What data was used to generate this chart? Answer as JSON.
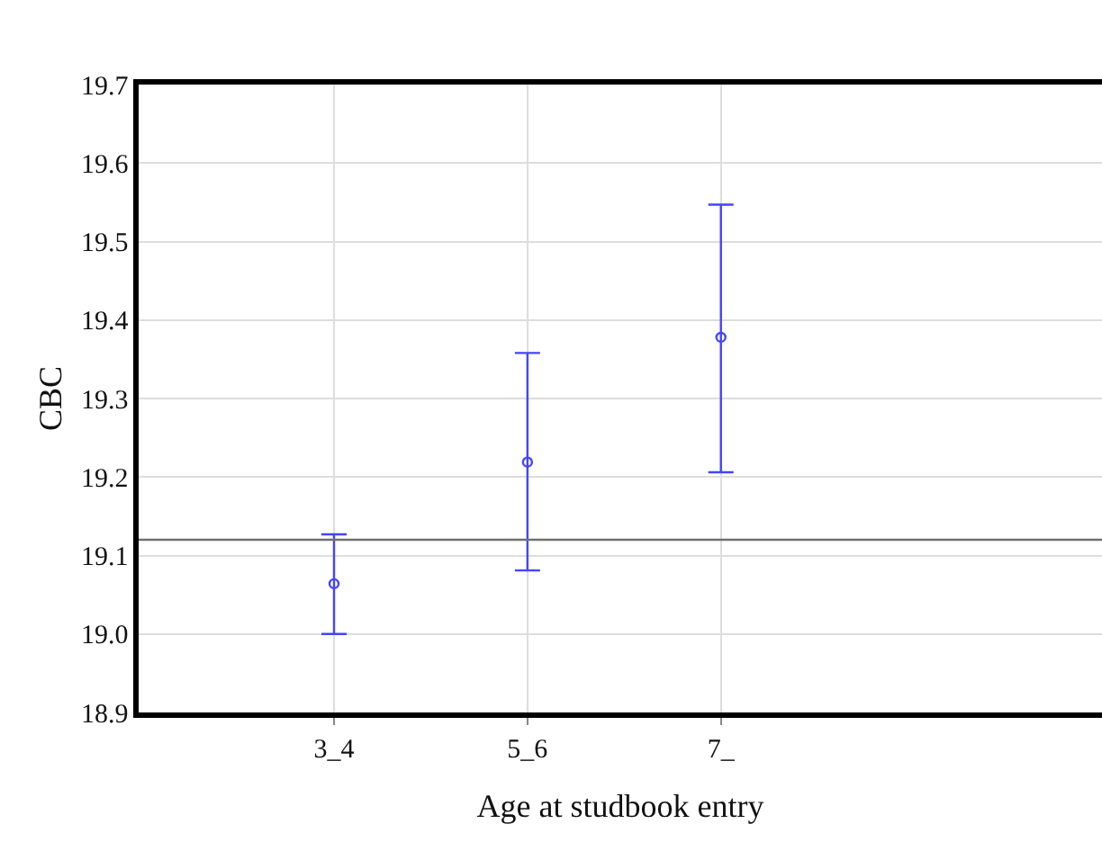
{
  "chart_data": {
    "type": "scatter",
    "xlabel": "Age at studbook entry",
    "ylabel": "CBC",
    "categories": [
      "3_4",
      "5_6",
      "7_"
    ],
    "series": [
      {
        "color": "#4444ff",
        "values": [
          19.064,
          19.219,
          19.378
        ],
        "errors": [
          [
            19.0,
            19.127
          ],
          [
            19.081,
            19.358
          ],
          [
            19.206,
            19.547
          ]
        ]
      }
    ],
    "ylim": [
      18.9,
      19.7
    ],
    "yticks": [
      18.9,
      {
        "value": 19,
        "label": "19.0"
      },
      19.1,
      19.2,
      19.3,
      19.4,
      19.5,
      19.6,
      19.7
    ],
    "ref_lines": [
      {
        "axis": "y",
        "value": 19.12,
        "color": "#707070"
      }
    ],
    "grid": true,
    "marker": "circle"
  }
}
